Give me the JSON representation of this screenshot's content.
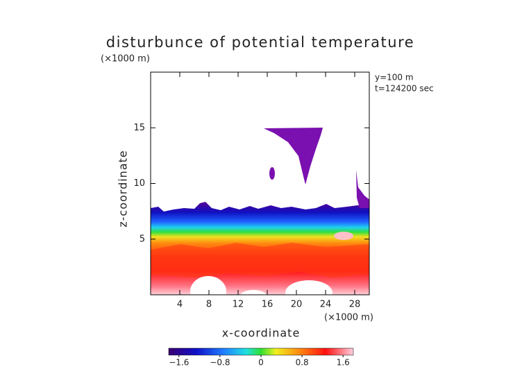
{
  "chart_data": {
    "type": "contour",
    "title": "disturbunce of potential temperature",
    "xlabel": "x-coordinate",
    "ylabel": "z-coordinate",
    "xunit": "(×1000 m)",
    "yunit": "(×1000 m)",
    "annotations": [
      "y=100 m",
      "t=124200 sec"
    ],
    "xlim": [
      0,
      30
    ],
    "ylim": [
      0,
      20
    ],
    "xticks": [
      4,
      8,
      12,
      16,
      20,
      24,
      28
    ],
    "yticks": [
      5,
      10,
      15
    ],
    "colorbar": {
      "lim": [
        -1.8,
        1.8
      ],
      "ticks": [
        {
          "value": -1.6,
          "label": "−1.6"
        },
        {
          "value": -0.8,
          "label": "−0.8"
        },
        0,
        0.8,
        1.6
      ]
    }
  }
}
